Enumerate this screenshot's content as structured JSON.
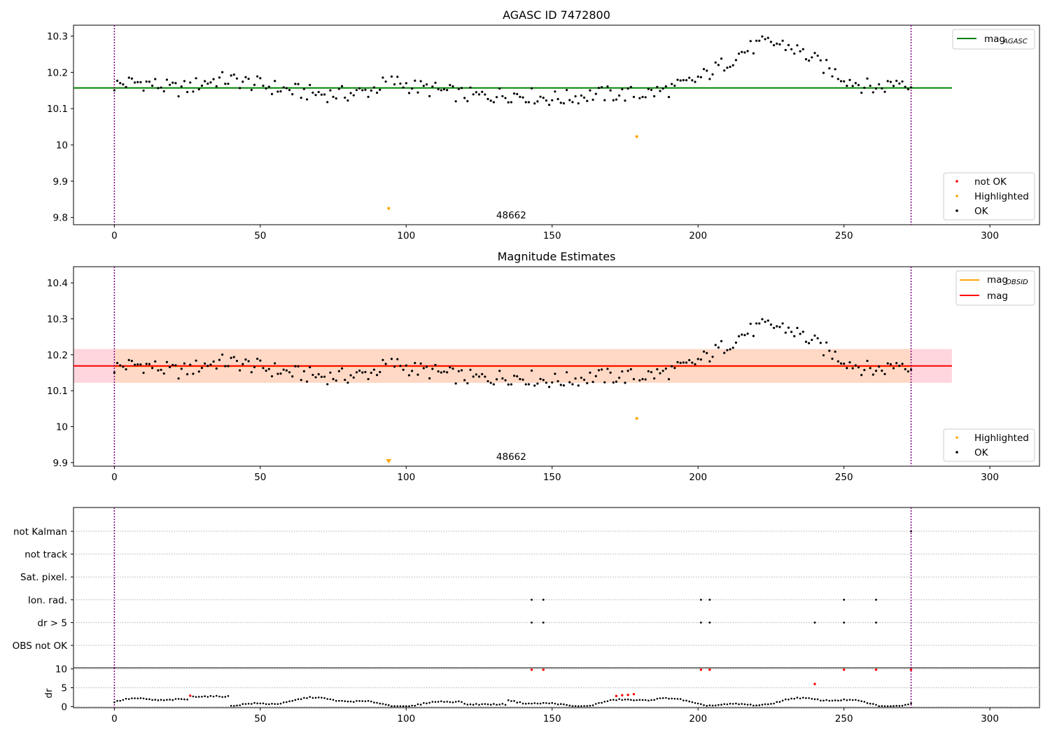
{
  "figure": {
    "title": "AGASC ID 7472800"
  },
  "colors": {
    "ok": "#000000",
    "not_ok": "#ff0000",
    "highlighted": "#ffa500",
    "mag_agasc": "#008000",
    "mag_obsid": "#ffa500",
    "mag": "#ff0000",
    "obsid_boundary": "#800080",
    "band_obsid": "#ffdab9",
    "band_mag": "#ffc0cb",
    "gridline": "#b0b0b0"
  },
  "chart_data": [
    {
      "type": "scatter",
      "title": "AGASC ID 7472800",
      "xlim": [
        -14,
        317
      ],
      "ylim": [
        9.78,
        10.33
      ],
      "xticks": [
        0,
        50,
        100,
        150,
        200,
        250,
        300
      ],
      "yticks": [
        9.8,
        9.9,
        10.0,
        10.1,
        10.2,
        10.3
      ],
      "obsid_boundaries": [
        0,
        273
      ],
      "obsid_label": "48662",
      "lines": [
        {
          "name": "mag",
          "name_sub": "AGASC",
          "y": 10.157,
          "x_range": [
            -14,
            287
          ],
          "color": "mag_agasc"
        }
      ],
      "legend_lines_position": "upper right",
      "legend_points_position": "lower right",
      "legend_points": [
        {
          "name": "not OK",
          "color": "not_ok"
        },
        {
          "name": "Highlighted",
          "color": "highlighted"
        },
        {
          "name": "OK",
          "color": "ok"
        }
      ],
      "highlighted_points": [
        [
          94,
          9.825
        ],
        [
          179,
          10.023
        ]
      ]
    },
    {
      "type": "scatter",
      "title": "Magnitude Estimates",
      "xlim": [
        -14,
        317
      ],
      "ylim": [
        9.89,
        10.445
      ],
      "xticks": [
        0,
        50,
        100,
        150,
        200,
        250,
        300
      ],
      "yticks": [
        9.9,
        10.0,
        10.1,
        10.2,
        10.3,
        10.4
      ],
      "obsid_boundaries": [
        0,
        273
      ],
      "obsid_label": "48662",
      "bands": [
        {
          "name": "mag",
          "y_range": [
            10.122,
            10.216
          ],
          "x_range": [
            -14,
            287
          ],
          "color": "band_mag"
        },
        {
          "name": "mag_OBSID",
          "y_range": [
            10.122,
            10.216
          ],
          "x_range": [
            0,
            273
          ],
          "color": "band_obsid"
        }
      ],
      "lines": [
        {
          "name": "mag",
          "name_sub": "OBSID",
          "y": 10.168,
          "x_range": [
            0,
            273
          ],
          "color": "mag_obsid"
        },
        {
          "name": "mag",
          "name_sub": "",
          "y": 10.169,
          "x_range": [
            -14,
            287
          ],
          "color": "mag"
        }
      ],
      "legend_lines_position": "upper right",
      "legend_points_position": "lower right",
      "legend_points": [
        {
          "name": "Highlighted",
          "color": "highlighted"
        },
        {
          "name": "OK",
          "color": "ok"
        }
      ],
      "highlighted_points": [
        [
          179,
          10.023
        ]
      ],
      "clipped_markers": [
        [
          94,
          9.9
        ]
      ]
    },
    {
      "type": "scatter",
      "title": "",
      "xlim": [
        -14,
        317
      ],
      "xticks": [
        0,
        50,
        100,
        150,
        200,
        250,
        300
      ],
      "obsid_boundaries": [
        0,
        273
      ],
      "flag_rows": [
        "not Kalman",
        "not track",
        "Sat. pixel.",
        "Ion. rad.",
        "dr > 5",
        "OBS not OK"
      ],
      "flag_points": {
        "not Kalman": [
          273
        ],
        "not track": [],
        "Sat. pixel.": [],
        "Ion. rad.": [
          143,
          147,
          201,
          204,
          250,
          261
        ],
        "dr > 5": [
          143,
          147,
          201,
          204,
          240,
          250,
          261
        ],
        "OBS not OK": []
      },
      "dr_ylabel": "dr",
      "dr_ylim": [
        -0.3,
        10.3
      ],
      "dr_yticks": [
        0,
        5,
        10
      ],
      "dr_not_ok_points": [
        [
          143,
          9.8
        ],
        [
          147,
          9.8
        ],
        [
          201,
          9.8
        ],
        [
          204,
          9.8
        ],
        [
          240,
          6.0
        ],
        [
          250,
          9.8
        ],
        [
          261,
          9.8
        ],
        [
          273,
          9.8
        ],
        [
          26,
          2.9
        ],
        [
          172,
          2.8
        ],
        [
          174,
          3.0
        ],
        [
          176,
          3.1
        ],
        [
          178,
          3.3
        ]
      ]
    }
  ]
}
